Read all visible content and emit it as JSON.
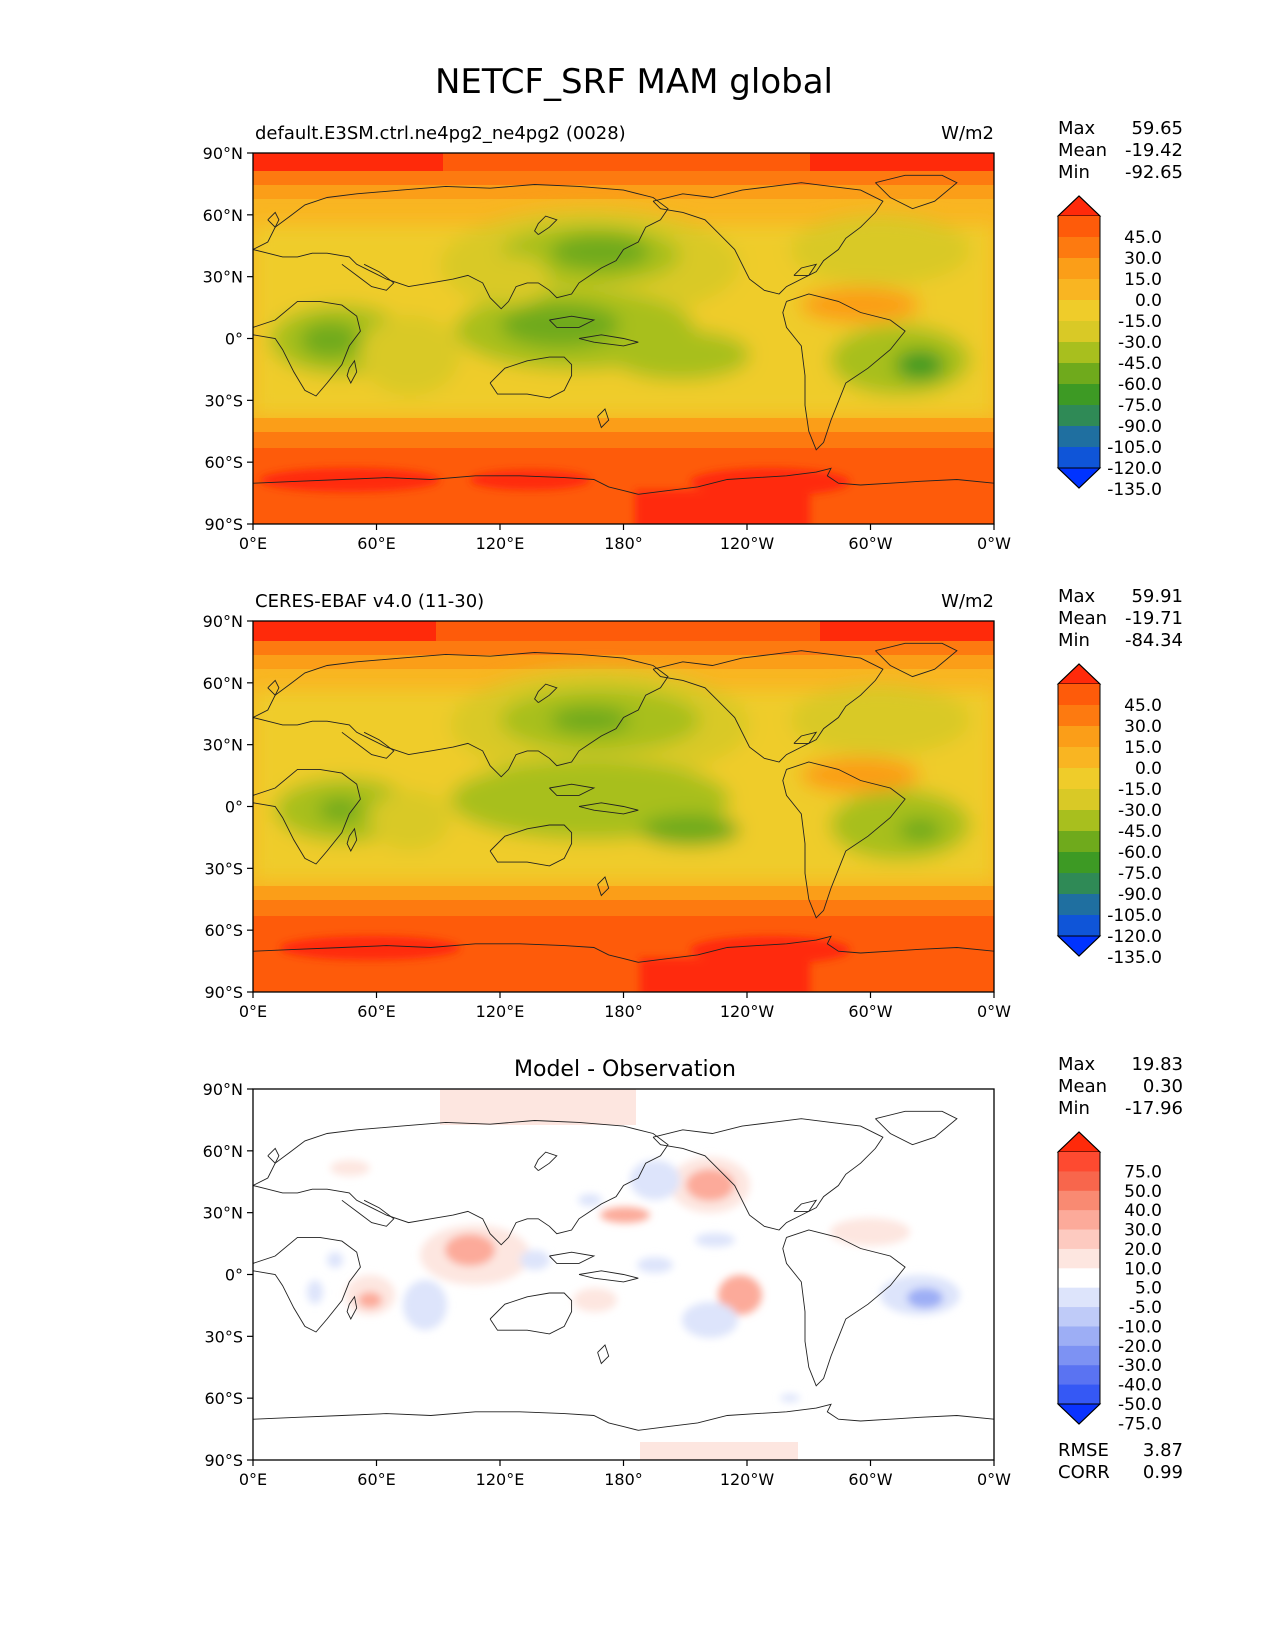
{
  "figure": {
    "title": "NETCF_SRF MAM global"
  },
  "axes": {
    "xticks": [
      "0°E",
      "60°E",
      "120°E",
      "180°",
      "120°W",
      "60°W",
      "0°W"
    ],
    "yticks": [
      "90°N",
      "60°N",
      "30°N",
      "0°",
      "30°S",
      "60°S",
      "90°S"
    ]
  },
  "panels": [
    {
      "left_title": "default.E3SM.ctrl.ne4pg2_ne4pg2 (0028)",
      "right_title": "W/m2",
      "center_title": "",
      "stats": [
        {
          "label": "Max",
          "value": "59.65"
        },
        {
          "label": "Mean",
          "value": "-19.42"
        },
        {
          "label": "Min",
          "value": "-92.65"
        }
      ],
      "colorbar": {
        "levels": [
          "45.0",
          "30.0",
          "15.0",
          "0.0",
          "-15.0",
          "-30.0",
          "-45.0",
          "-60.0",
          "-75.0",
          "-90.0",
          "-105.0",
          "-120.0",
          "-135.0"
        ],
        "colors": [
          "#ff2a0a",
          "#fe5b0a",
          "#fd7a10",
          "#fb9e18",
          "#f9b522",
          "#efcc2a",
          "#d9c926",
          "#a8bf1e",
          "#6faa1c",
          "#3d9a24",
          "#2f8a56",
          "#1f6fa0",
          "#0f55d8",
          "#0033ff"
        ]
      },
      "footer_stats": []
    },
    {
      "left_title": "CERES-EBAF v4.0 (11-30)",
      "right_title": "W/m2",
      "center_title": "",
      "stats": [
        {
          "label": "Max",
          "value": "59.91"
        },
        {
          "label": "Mean",
          "value": "-19.71"
        },
        {
          "label": "Min",
          "value": "-84.34"
        }
      ],
      "colorbar": {
        "levels": [
          "45.0",
          "30.0",
          "15.0",
          "0.0",
          "-15.0",
          "-30.0",
          "-45.0",
          "-60.0",
          "-75.0",
          "-90.0",
          "-105.0",
          "-120.0",
          "-135.0"
        ],
        "colors": [
          "#ff2a0a",
          "#fe5b0a",
          "#fd7a10",
          "#fb9e18",
          "#f9b522",
          "#efcc2a",
          "#d9c926",
          "#a8bf1e",
          "#6faa1c",
          "#3d9a24",
          "#2f8a56",
          "#1f6fa0",
          "#0f55d8",
          "#0033ff"
        ]
      },
      "footer_stats": []
    },
    {
      "left_title": "",
      "right_title": "",
      "center_title": "Model - Observation",
      "stats": [
        {
          "label": "Max",
          "value": "19.83"
        },
        {
          "label": "Mean",
          "value": "0.30"
        },
        {
          "label": "Min",
          "value": "-17.96"
        }
      ],
      "colorbar": {
        "levels": [
          "75.0",
          "50.0",
          "40.0",
          "30.0",
          "20.0",
          "10.0",
          "5.0",
          "-5.0",
          "-10.0",
          "-20.0",
          "-30.0",
          "-40.0",
          "-50.0",
          "-75.0"
        ],
        "colors": [
          "#ff2a0a",
          "#fe4a30",
          "#f8664c",
          "#f98a72",
          "#fcaa9a",
          "#fdcac0",
          "#fde6e0",
          "#ffffff",
          "#dde4fb",
          "#bfcbf8",
          "#9daef5",
          "#7d92f3",
          "#5a73f2",
          "#3558f5",
          "#0a33ff"
        ]
      },
      "footer_stats": [
        {
          "label": "RMSE",
          "value": "3.87"
        },
        {
          "label": "CORR",
          "value": "0.99"
        }
      ]
    }
  ]
}
